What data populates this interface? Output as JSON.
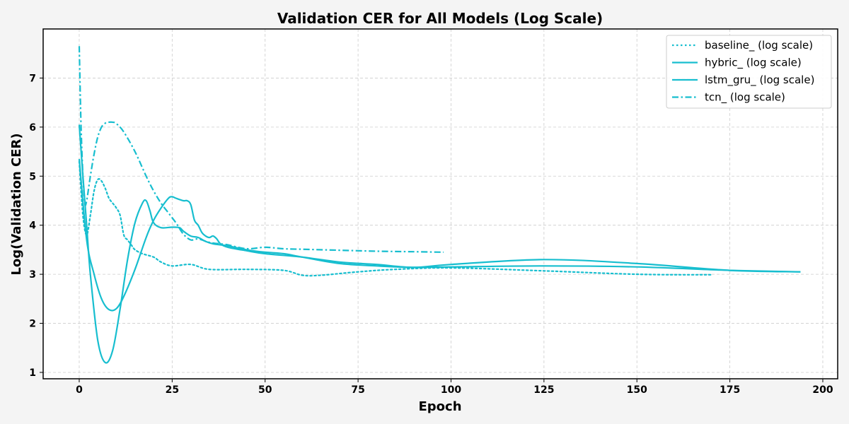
{
  "chart_data": {
    "type": "line",
    "title": "Validation CER for All Models (Log Scale)",
    "xlabel": "Epoch",
    "ylabel": "Log(Validation CER)",
    "xlim": [
      -9.7,
      204
    ],
    "ylim": [
      0.87,
      8.0
    ],
    "xticks": [
      0,
      25,
      50,
      75,
      100,
      125,
      150,
      175,
      200
    ],
    "yticks": [
      1,
      2,
      3,
      4,
      5,
      6,
      7
    ],
    "grid": true,
    "legend_position": "top-right",
    "line_color": "#17becf",
    "series": [
      {
        "name": "baseline_ (log scale)",
        "style": "dotted",
        "x": [
          0,
          1,
          2,
          3,
          4,
          5,
          6,
          7,
          8,
          9,
          10,
          11,
          12,
          13,
          14,
          15,
          17,
          20,
          22,
          25,
          30,
          35,
          45,
          55,
          60,
          65,
          75,
          85,
          100,
          125,
          150,
          170
        ],
        "y": [
          5.3,
          4.2,
          3.8,
          4.2,
          4.7,
          4.93,
          4.9,
          4.75,
          4.55,
          4.45,
          4.35,
          4.2,
          3.8,
          3.7,
          3.6,
          3.5,
          3.42,
          3.35,
          3.25,
          3.17,
          3.2,
          3.1,
          3.1,
          3.08,
          2.98,
          2.98,
          3.05,
          3.1,
          3.13,
          3.07,
          3.0,
          2.99
        ]
      },
      {
        "name": "hybric_ (log scale)",
        "style": "solid",
        "x": [
          0,
          1,
          2,
          3,
          5,
          7,
          9,
          11,
          13,
          15,
          17,
          18,
          19,
          20,
          22,
          25,
          27,
          28,
          30,
          32,
          34,
          36,
          38,
          40,
          45,
          50,
          55,
          60,
          70,
          80,
          90,
          100,
          125,
          150,
          175,
          194
        ],
        "y": [
          6.05,
          5.0,
          4.0,
          3.0,
          1.65,
          1.2,
          1.45,
          2.3,
          3.3,
          4.05,
          4.45,
          4.5,
          4.3,
          4.05,
          3.95,
          3.96,
          3.95,
          3.88,
          3.78,
          3.75,
          3.67,
          3.62,
          3.6,
          3.58,
          3.5,
          3.45,
          3.42,
          3.35,
          3.22,
          3.17,
          3.14,
          3.15,
          3.17,
          3.15,
          3.08,
          3.05
        ]
      },
      {
        "name": "lstm_gru_ (log scale)",
        "style": "solid",
        "x": [
          0,
          2,
          4,
          6,
          8,
          10,
          12,
          15,
          18,
          20,
          22,
          24,
          25,
          26,
          28,
          29,
          30,
          31,
          32,
          33,
          34,
          35,
          36,
          37,
          38,
          40,
          45,
          50,
          60,
          70,
          80,
          90,
          100,
          125,
          150,
          175,
          194
        ],
        "y": [
          5.35,
          3.7,
          3.0,
          2.5,
          2.28,
          2.3,
          2.55,
          3.1,
          3.75,
          4.1,
          4.35,
          4.55,
          4.58,
          4.55,
          4.5,
          4.5,
          4.42,
          4.1,
          4.0,
          3.85,
          3.78,
          3.75,
          3.78,
          3.72,
          3.62,
          3.55,
          3.48,
          3.42,
          3.35,
          3.25,
          3.2,
          3.14,
          3.2,
          3.3,
          3.22,
          3.08,
          3.05
        ]
      },
      {
        "name": "tcn_ (log scale)",
        "style": "dashdot",
        "x": [
          0,
          0.5,
          1,
          1.5,
          2,
          3,
          4,
          5,
          6,
          7,
          8,
          9,
          10,
          12,
          15,
          18,
          20,
          22,
          24,
          26,
          28,
          30,
          32,
          35,
          38,
          40,
          45,
          50,
          55,
          60,
          70,
          80,
          90,
          98
        ],
        "y": [
          7.65,
          6.0,
          5.0,
          4.45,
          4.5,
          5.0,
          5.45,
          5.8,
          6.0,
          6.08,
          6.1,
          6.1,
          6.07,
          5.9,
          5.5,
          5.0,
          4.7,
          4.45,
          4.25,
          4.05,
          3.82,
          3.7,
          3.72,
          3.65,
          3.62,
          3.6,
          3.52,
          3.55,
          3.52,
          3.51,
          3.49,
          3.47,
          3.46,
          3.45
        ]
      }
    ]
  }
}
